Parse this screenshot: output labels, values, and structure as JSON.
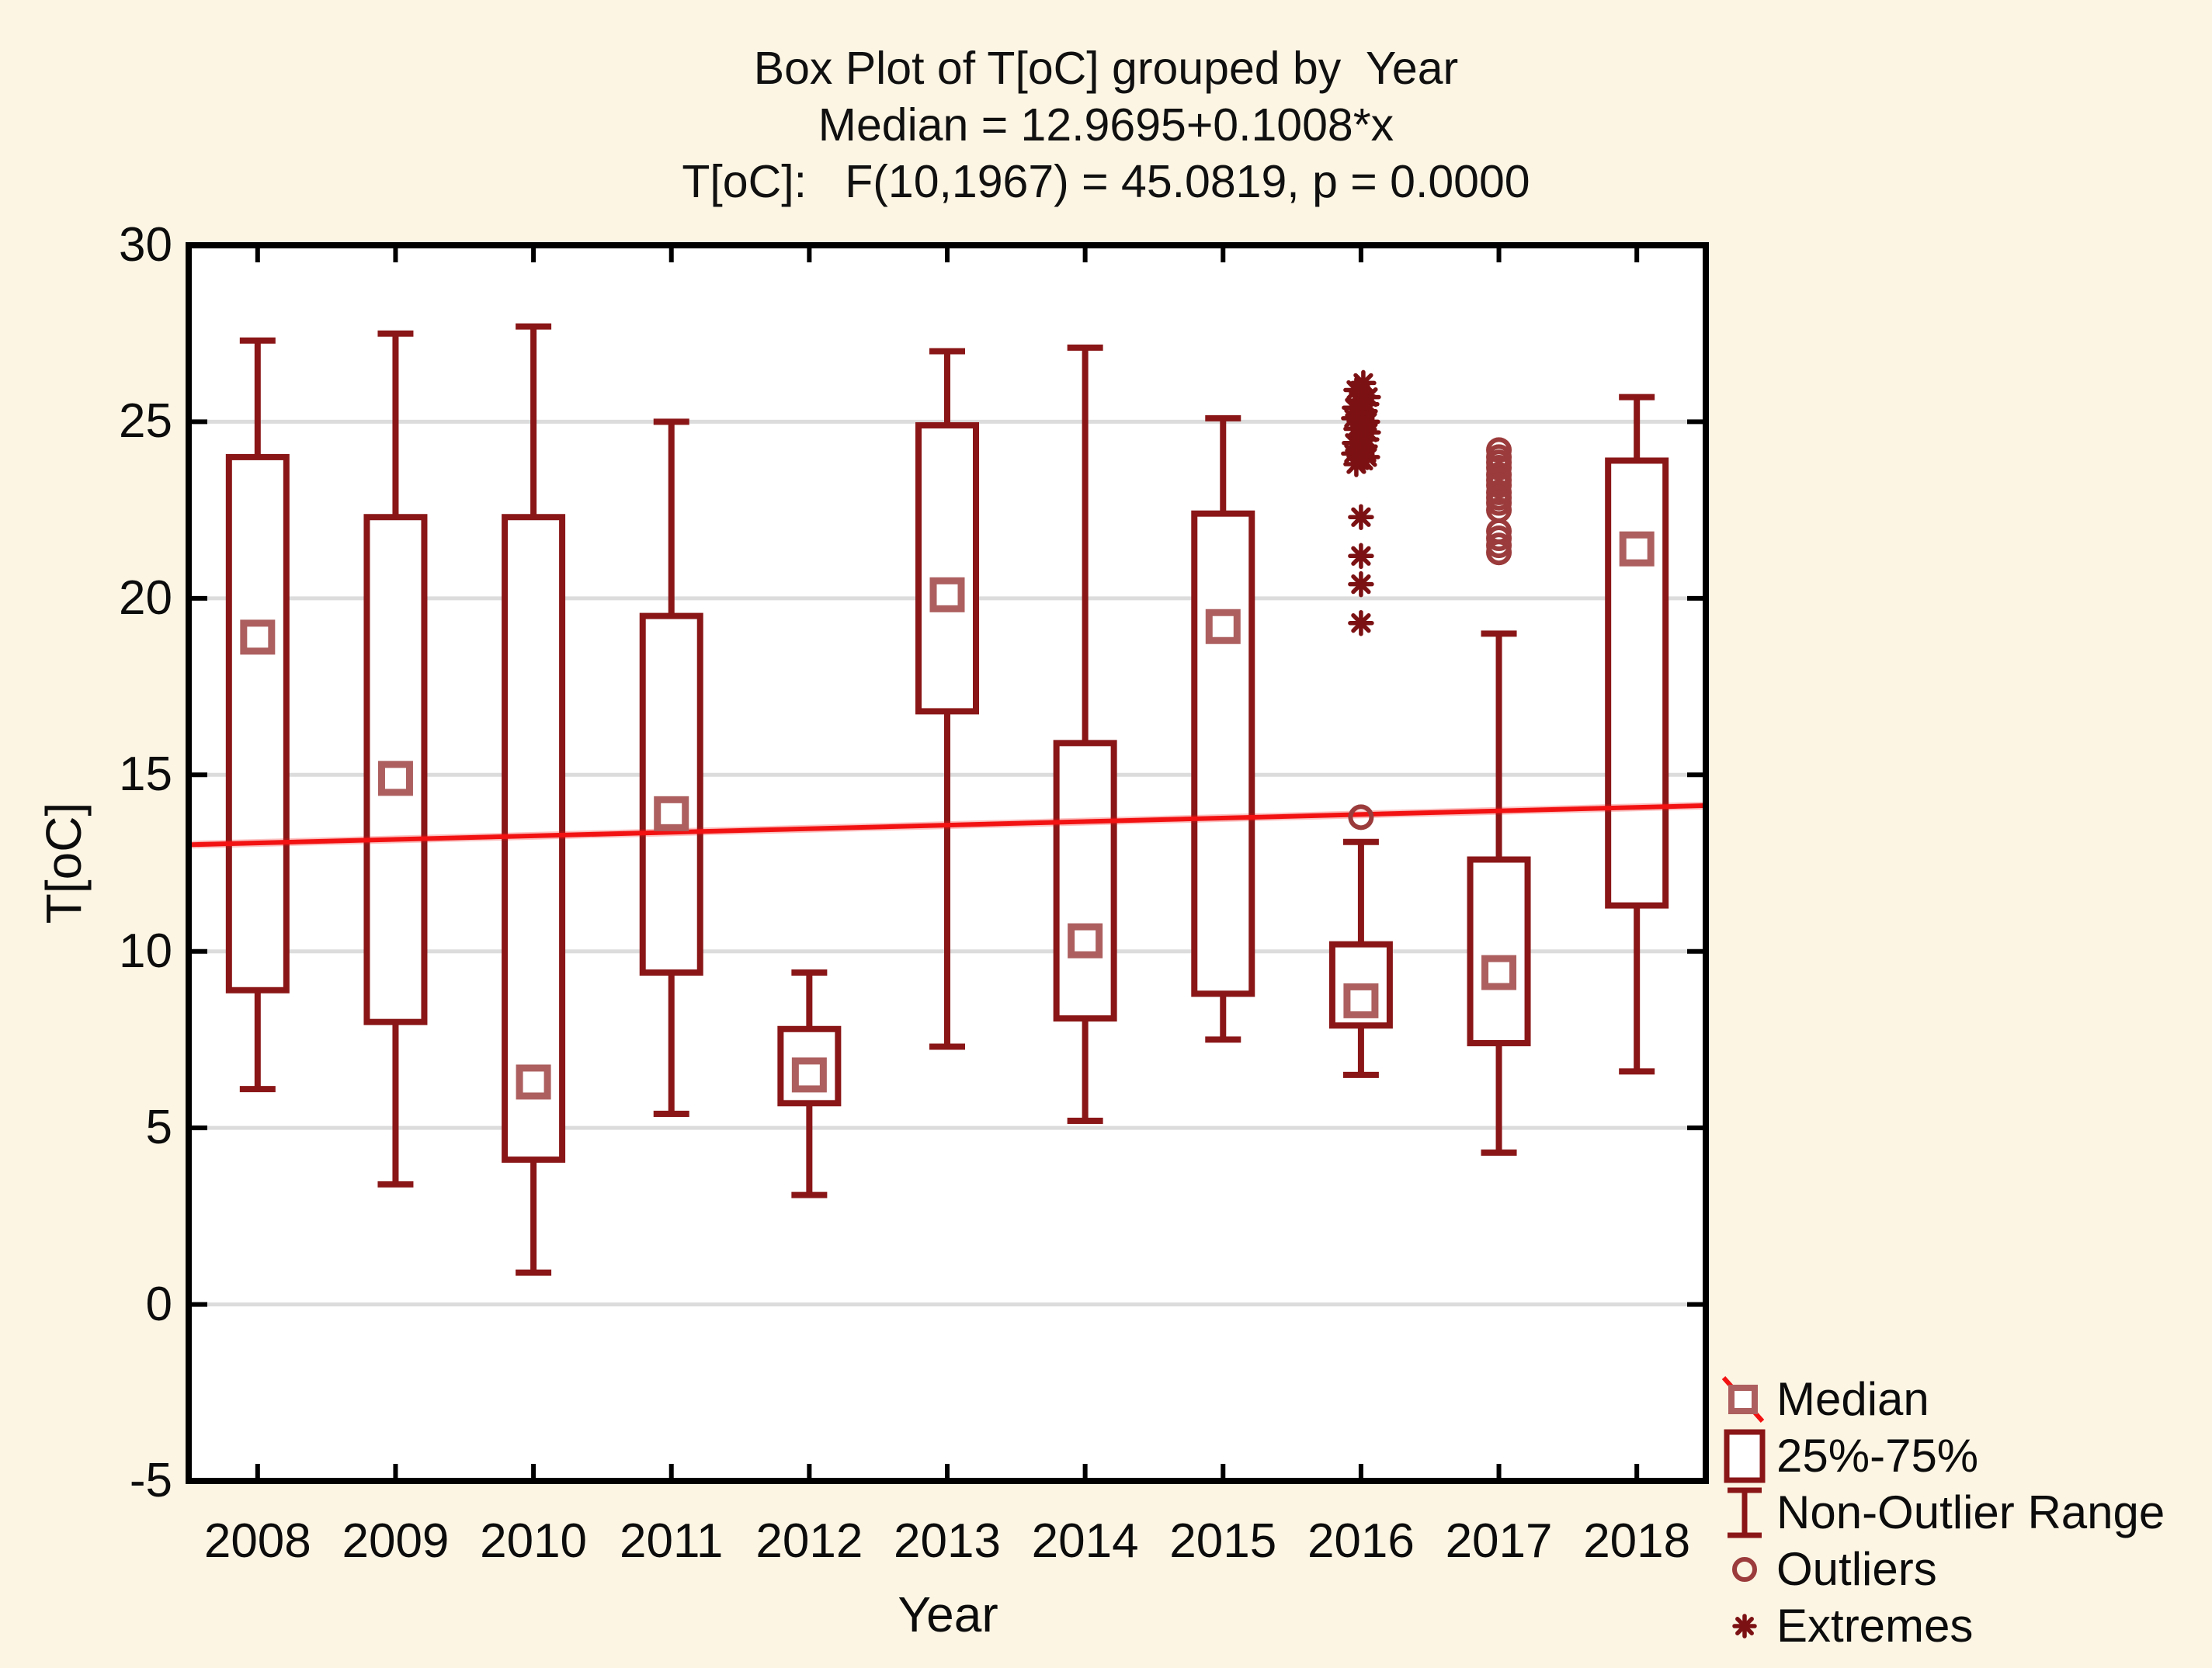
{
  "figure": {
    "title_lines": [
      "Box Plot of T[oC] grouped by  Year",
      "Median = 12.9695+0.1008*x",
      "T[oC]:   F(10,1967) = 45.0819, p = 0.0000"
    ]
  },
  "axes": {
    "x_label": "Year",
    "y_label": "T[oC]",
    "y_ticks": [
      30,
      25,
      20,
      15,
      10,
      5,
      0,
      -5
    ],
    "grid_values": [
      25,
      20,
      15,
      10,
      5,
      0
    ],
    "y_range": [
      -5,
      30
    ]
  },
  "colors": {
    "background": "#FCF5E4",
    "plot_background": "#FFFFFF",
    "box_stroke": "#8A1617",
    "median_marker": "#AD5F5F",
    "outlier": "#9B3B3B",
    "extreme": "#7C1113",
    "trend": "#F21212",
    "grid": "#DCDCDC",
    "axis": "#000000",
    "text": "#0E0E0E"
  },
  "legend": {
    "items": [
      {
        "label": "Median",
        "symbol": "median-marker"
      },
      {
        "label": "25%-75%",
        "symbol": "box"
      },
      {
        "label": "Non-Outlier Range",
        "symbol": "whisker"
      },
      {
        "label": "Outliers",
        "symbol": "circle"
      },
      {
        "label": "Extremes",
        "symbol": "asterisk"
      }
    ]
  },
  "chart_data": {
    "type": "boxplot",
    "title": "Box Plot of T[oC] grouped by  Year",
    "subtitle": "Median = 12.9695+0.1008*x",
    "stat_text": "T[oC]:   F(10,1967) = 45.0819, p = 0.0000",
    "xlabel": "Year",
    "ylabel": "T[oC]",
    "ylim": [
      -5,
      30
    ],
    "grid": true,
    "legend_position": "bottom-right",
    "categories": [
      "2008",
      "2009",
      "2010",
      "2011",
      "2012",
      "2013",
      "2014",
      "2015",
      "2016",
      "2017",
      "2018"
    ],
    "series": [
      {
        "year": "2008",
        "whisker_low": 6.1,
        "q1": 8.9,
        "median": 18.9,
        "q3": 24.0,
        "whisker_high": 27.3,
        "outliers": [],
        "extremes": []
      },
      {
        "year": "2009",
        "whisker_low": 3.4,
        "q1": 8.0,
        "median": 14.9,
        "q3": 22.3,
        "whisker_high": 27.5,
        "outliers": [],
        "extremes": []
      },
      {
        "year": "2010",
        "whisker_low": 0.9,
        "q1": 4.1,
        "median": 6.3,
        "q3": 22.3,
        "whisker_high": 27.7,
        "outliers": [],
        "extremes": []
      },
      {
        "year": "2011",
        "whisker_low": 5.4,
        "q1": 9.4,
        "median": 13.9,
        "q3": 19.5,
        "whisker_high": 25.0,
        "outliers": [],
        "extremes": []
      },
      {
        "year": "2012",
        "whisker_low": 3.1,
        "q1": 5.7,
        "median": 6.5,
        "q3": 7.8,
        "whisker_high": 9.4,
        "outliers": [],
        "extremes": []
      },
      {
        "year": "2013",
        "whisker_low": 7.3,
        "q1": 16.8,
        "median": 20.1,
        "q3": 24.9,
        "whisker_high": 27.0,
        "outliers": [],
        "extremes": []
      },
      {
        "year": "2014",
        "whisker_low": 5.2,
        "q1": 8.1,
        "median": 10.3,
        "q3": 15.9,
        "whisker_high": 27.1,
        "outliers": [],
        "extremes": []
      },
      {
        "year": "2015",
        "whisker_low": 7.5,
        "q1": 8.8,
        "median": 19.2,
        "q3": 22.4,
        "whisker_high": 25.1,
        "outliers": [],
        "extremes": []
      },
      {
        "year": "2016",
        "whisker_low": 6.5,
        "q1": 7.9,
        "median": 8.6,
        "q3": 10.2,
        "whisker_high": 13.1,
        "outliers": [
          13.8
        ],
        "extremes": [
          19.3,
          20.4,
          21.2,
          22.3,
          23.8,
          23.9,
          24.0,
          24.1,
          24.2,
          24.3,
          24.4,
          24.5,
          24.6,
          24.7,
          24.8,
          24.9,
          25.0,
          25.1,
          25.2,
          25.3,
          25.4,
          25.5,
          25.6,
          25.7,
          25.9,
          26.1
        ]
      },
      {
        "year": "2017",
        "whisker_low": 4.3,
        "q1": 7.4,
        "median": 9.4,
        "q3": 12.6,
        "whisker_high": 19.0,
        "outliers": [
          24.2,
          24.0,
          23.85,
          23.7,
          23.5,
          23.35,
          23.2,
          23.0,
          22.85,
          22.7,
          22.5,
          21.9,
          21.7,
          21.5,
          21.3
        ],
        "extremes": []
      },
      {
        "year": "2018",
        "whisker_low": 6.6,
        "q1": 11.3,
        "median": 21.4,
        "q3": 23.9,
        "whisker_high": 25.7,
        "outliers": [],
        "extremes": []
      }
    ],
    "trend_line": {
      "name": "Median",
      "equation": "Median = 12.9695+0.1008*x",
      "intercept": 12.9695,
      "slope": 0.1008,
      "value_at_left_edge": 13.02,
      "value_at_right_edge": 14.13
    }
  }
}
